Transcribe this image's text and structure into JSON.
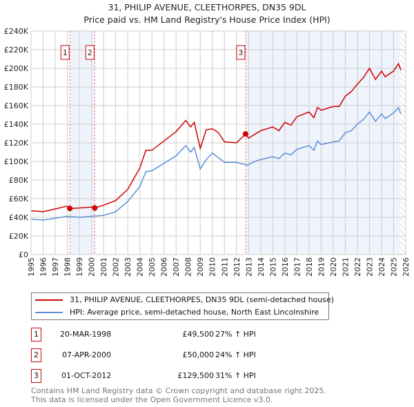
{
  "chart_data": {
    "type": "line",
    "title": "31, PHILIP AVENUE, CLEETHORPES, DN35 9DL",
    "subtitle": "Price paid vs. HM Land Registry's House Price Index (HPI)",
    "xlim": [
      1995,
      2026
    ],
    "ylim": [
      0,
      240000
    ],
    "x_ticks": [
      "1995",
      "1996",
      "1997",
      "1998",
      "1999",
      "2000",
      "2001",
      "2002",
      "2003",
      "2004",
      "2005",
      "2006",
      "2007",
      "2008",
      "2009",
      "2010",
      "2011",
      "2012",
      "2013",
      "2014",
      "2015",
      "2016",
      "2017",
      "2018",
      "2019",
      "2020",
      "2021",
      "2022",
      "2023",
      "2024",
      "2025",
      "2026"
    ],
    "y_ticks": [
      "£0",
      "£20K",
      "£40K",
      "£60K",
      "£80K",
      "£100K",
      "£120K",
      "£140K",
      "£160K",
      "£180K",
      "£200K",
      "£220K",
      "£240K"
    ],
    "grid": true,
    "series": [
      {
        "name": "31, PHILIP AVENUE, CLEETHORPES, DN35 9DL (semi-detached house)",
        "color": "#cc0000",
        "x": [
          1995,
          1996,
          1997,
          1998,
          1998.2,
          1999,
          2000,
          2000.27,
          2001,
          2002,
          2003,
          2004,
          2004.5,
          2005,
          2006,
          2007,
          2007.8,
          2008.2,
          2008.5,
          2009,
          2009.5,
          2010,
          2010.5,
          2011,
          2012,
          2012.75,
          2013,
          2014,
          2015,
          2015.5,
          2016,
          2016.5,
          2017,
          2018,
          2018.4,
          2018.7,
          2019,
          2020,
          2020.5,
          2021,
          2021.5,
          2022,
          2022.5,
          2023,
          2023.5,
          2024,
          2024.3,
          2025,
          2025.4,
          2025.6
        ],
        "y": [
          47,
          46,
          49,
          52,
          49.5,
          50,
          51,
          50,
          53,
          58,
          70,
          93,
          112,
          112,
          122,
          132,
          144,
          137,
          142,
          114,
          134,
          135,
          131,
          121,
          120,
          129.5,
          125,
          133,
          137,
          133,
          142,
          139,
          148,
          153,
          147,
          158,
          155,
          159,
          159,
          170,
          175,
          183,
          190,
          200,
          188,
          197,
          191,
          197,
          205,
          198
        ]
      },
      {
        "name": "HPI: Average price, semi-detached house, North East Lincolnshire",
        "color": "#5b8fd4",
        "x": [
          1995,
          1996,
          1997,
          1998,
          1999,
          2000,
          2001,
          2002,
          2003,
          2004,
          2004.5,
          2005,
          2006,
          2007,
          2007.8,
          2008.2,
          2008.5,
          2009,
          2009.5,
          2010,
          2010.5,
          2011,
          2012,
          2012.9,
          2013.5,
          2014,
          2015,
          2015.5,
          2016,
          2016.5,
          2017,
          2018,
          2018.4,
          2018.7,
          2019,
          2020,
          2020.5,
          2021,
          2021.5,
          2022,
          2022.5,
          2023,
          2023.5,
          2024,
          2024.3,
          2025,
          2025.4,
          2025.6
        ],
        "y": [
          38,
          37,
          39,
          41,
          40,
          41,
          42,
          46,
          57,
          73,
          89,
          90,
          98,
          106,
          117,
          110,
          115,
          92,
          102,
          109,
          104,
          99,
          99,
          96,
          100,
          102,
          105,
          103,
          109,
          107,
          113,
          117,
          112,
          122,
          118,
          121,
          122,
          131,
          133,
          140,
          145,
          153,
          143,
          151,
          146,
          152,
          158,
          151
        ]
      }
    ],
    "y_unit": "thousands GBP",
    "sales": [
      {
        "label": "1",
        "x": 1998.21,
        "y": 49.5
      },
      {
        "label": "2",
        "x": 2000.27,
        "y": 50
      },
      {
        "label": "3",
        "x": 2012.75,
        "y": 129.5
      }
    ],
    "shaded": [
      [
        1998.21,
        2000.27
      ],
      [
        2012.75,
        2025.5
      ]
    ],
    "hatched_from": 2025.5
  },
  "legend": [
    "31, PHILIP AVENUE, CLEETHORPES, DN35 9DL (semi-detached house)",
    "HPI: Average price, semi-detached house, North East Lincolnshire"
  ],
  "transactions": [
    {
      "num": "1",
      "date": "20-MAR-1998",
      "price": "£49,500",
      "hpi": "27% ↑ HPI"
    },
    {
      "num": "2",
      "date": "07-APR-2000",
      "price": "£50,000",
      "hpi": "24% ↑ HPI"
    },
    {
      "num": "3",
      "date": "01-OCT-2012",
      "price": "£129,500",
      "hpi": "31% ↑ HPI"
    }
  ],
  "footer": [
    "Contains HM Land Registry data © Crown copyright and database right 2025.",
    "This data is licensed under the Open Government Licence v3.0."
  ]
}
